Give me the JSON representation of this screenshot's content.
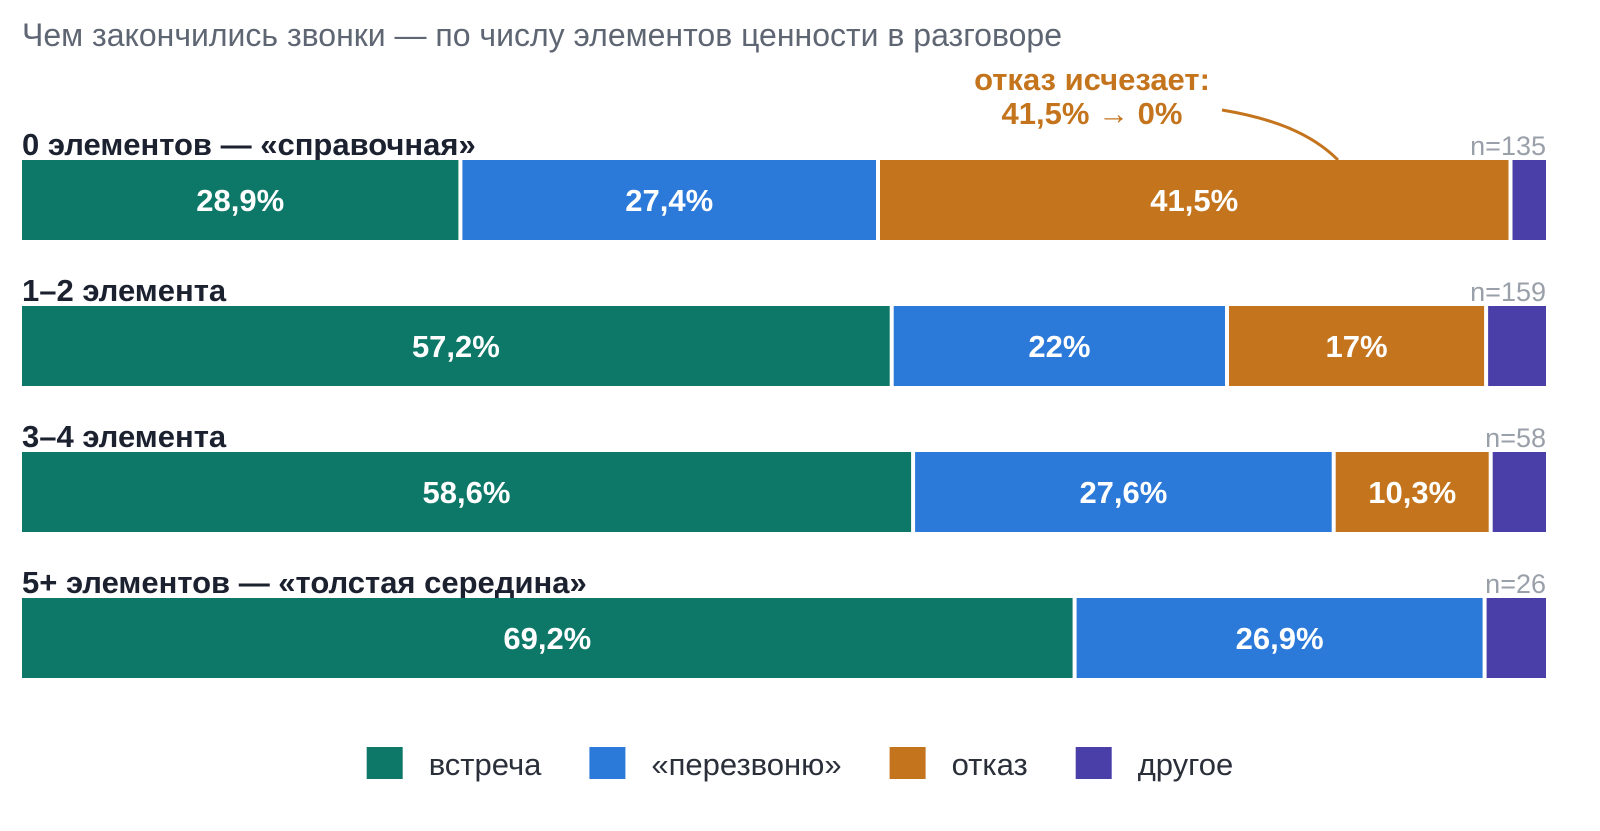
{
  "chart_data": {
    "type": "bar",
    "orientation": "horizontal",
    "stacked": true,
    "normalized_to": 100,
    "title": "Чем закончились звонки — по числу элементов ценности в разговоре",
    "xlim": [
      0,
      100
    ],
    "grid": false,
    "legend_position": "bottom-center",
    "series": [
      {
        "key": "meet",
        "name": "встреча",
        "color": "#0e7868"
      },
      {
        "key": "callback",
        "name": "«перезвоню»",
        "color": "#2b79d8"
      },
      {
        "key": "refuse",
        "name": "отказ",
        "color": "#c4741d"
      },
      {
        "key": "other",
        "name": "другое",
        "color": "#4a3fa8"
      }
    ],
    "rows": [
      {
        "label": "0 элементов — «справочная»",
        "n_label": "n=135",
        "values": [
          28.9,
          27.4,
          41.5,
          2.2
        ],
        "value_labels": [
          "28,9%",
          "27,4%",
          "41,5%",
          ""
        ]
      },
      {
        "label": "1–2 элемента",
        "n_label": "n=159",
        "values": [
          57.2,
          22.0,
          17.0,
          3.8
        ],
        "value_labels": [
          "57,2%",
          "22%",
          "17%",
          ""
        ]
      },
      {
        "label": "3–4 элемента",
        "n_label": "n=58",
        "values": [
          58.6,
          27.6,
          10.3,
          3.5
        ],
        "value_labels": [
          "58,6%",
          "27,6%",
          "10,3%",
          ""
        ]
      },
      {
        "label": "5+ элементов — «толстая середина»",
        "n_label": "n=26",
        "values": [
          69.2,
          26.9,
          0,
          3.9
        ],
        "value_labels": [
          "69,2%",
          "26,9%",
          "",
          ""
        ]
      }
    ],
    "annotation": {
      "lines": [
        "отказ исчезает:",
        "41,5% → 0%"
      ],
      "color": "#c4741d",
      "target_row": 0,
      "target_series": "refuse"
    }
  }
}
